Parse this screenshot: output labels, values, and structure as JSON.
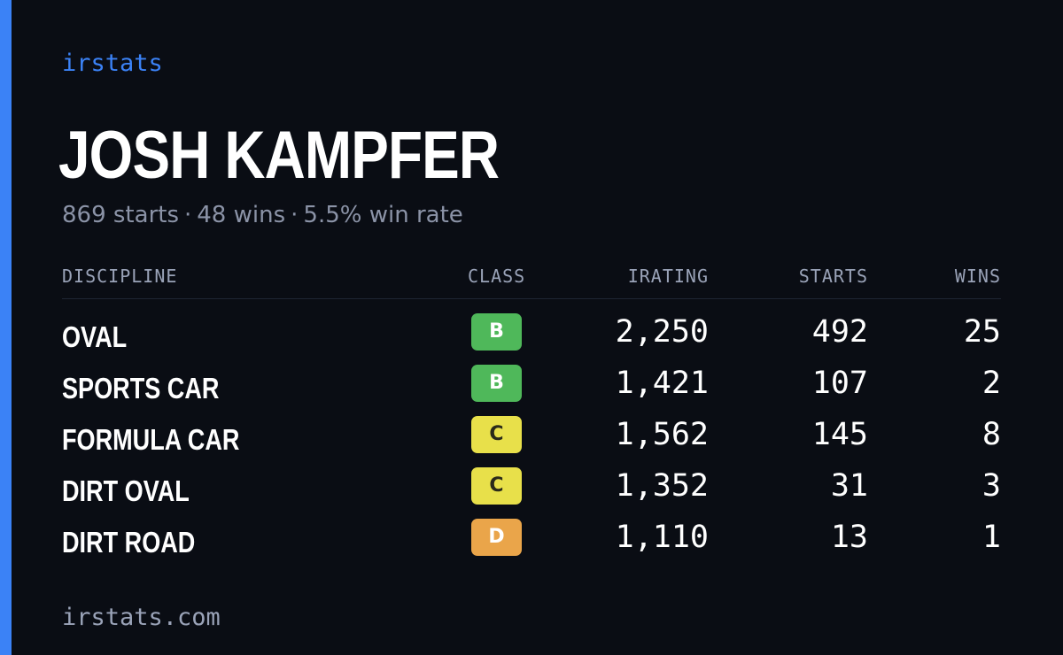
{
  "brand": "irstats",
  "driver": {
    "name": "JOSH KAMPFER",
    "starts_text": "869 starts",
    "wins_text": "48 wins",
    "win_rate_text": "5.5% win rate",
    "separator": "·"
  },
  "table": {
    "headers": {
      "discipline": "DISCIPLINE",
      "class": "CLASS",
      "irating": "IRATING",
      "starts": "STARTS",
      "wins": "WINS"
    },
    "rows": [
      {
        "discipline": "OVAL",
        "class": "B",
        "class_color": "#4fb85a",
        "class_text_color": "#ffffff",
        "irating": "2,250",
        "starts": "492",
        "wins": "25"
      },
      {
        "discipline": "SPORTS CAR",
        "class": "B",
        "class_color": "#4fb85a",
        "class_text_color": "#ffffff",
        "irating": "1,421",
        "starts": "107",
        "wins": "2"
      },
      {
        "discipline": "FORMULA CAR",
        "class": "C",
        "class_color": "#e8e04a",
        "class_text_color": "#2a2a1a",
        "irating": "1,562",
        "starts": "145",
        "wins": "8"
      },
      {
        "discipline": "DIRT OVAL",
        "class": "C",
        "class_color": "#e8e04a",
        "class_text_color": "#2a2a1a",
        "irating": "1,352",
        "starts": "31",
        "wins": "3"
      },
      {
        "discipline": "DIRT ROAD",
        "class": "D",
        "class_color": "#eaa54a",
        "class_text_color": "#ffffff",
        "irating": "1,110",
        "starts": "13",
        "wins": "1"
      }
    ]
  },
  "footer": "irstats.com",
  "colors": {
    "background": "#0a0d14",
    "accent": "#3b82f6",
    "muted": "#8b93a7"
  }
}
